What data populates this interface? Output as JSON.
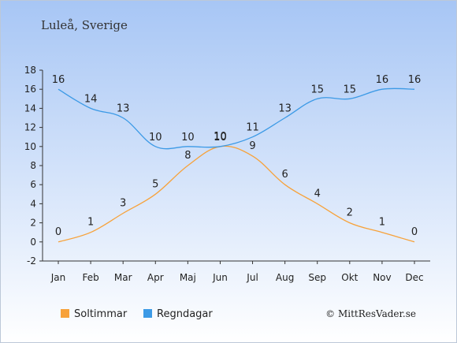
{
  "location": "Luleå, Sverige",
  "credit": "© MittResVader.se",
  "colors": {
    "background_top": "#a7c6f5",
    "background_bottom": "#ffffff",
    "sun": "#f7a23a",
    "rain": "#3c9ae6",
    "axis": "#333333"
  },
  "chart_data": {
    "type": "line",
    "categories": [
      "Jan",
      "Feb",
      "Mar",
      "Apr",
      "Maj",
      "Jun",
      "Jul",
      "Aug",
      "Sep",
      "Okt",
      "Nov",
      "Dec"
    ],
    "series": [
      {
        "name": "Soltimmar",
        "values": [
          0,
          1,
          3,
          5,
          8,
          10,
          9,
          6,
          4,
          2,
          1,
          0
        ]
      },
      {
        "name": "Regndagar",
        "values": [
          16,
          14,
          13,
          10,
          10,
          10,
          11,
          13,
          15,
          15,
          16,
          16
        ]
      }
    ],
    "ylim": [
      -2,
      18
    ],
    "yticks": [
      -2,
      0,
      2,
      4,
      6,
      8,
      10,
      12,
      14,
      16,
      18
    ],
    "grid": false,
    "legend": "bottom"
  }
}
